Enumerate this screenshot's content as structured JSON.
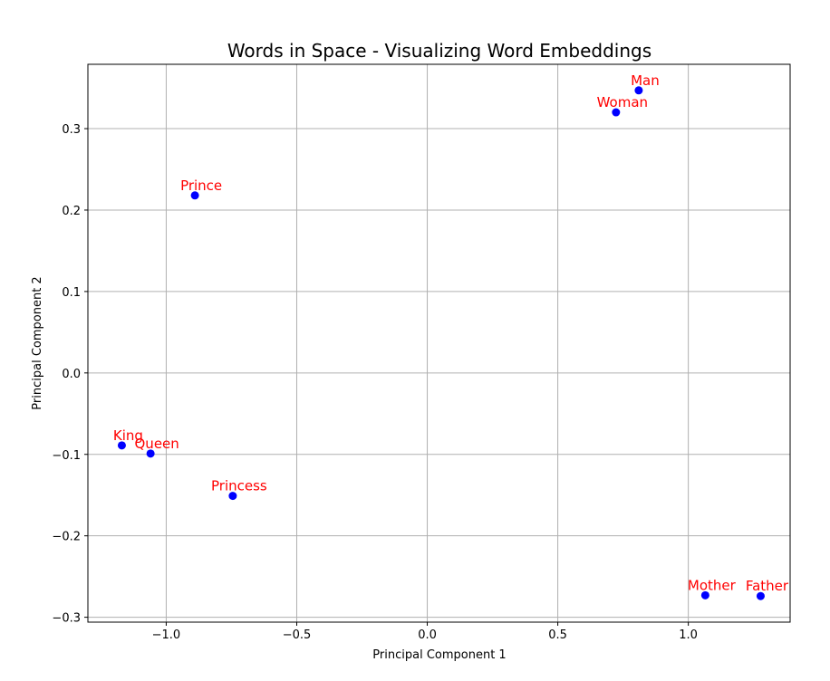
{
  "chart_data": {
    "type": "scatter",
    "title": "Words in Space - Visualizing Word Embeddings",
    "xlabel": "Principal Component 1",
    "ylabel": "Principal Component 2",
    "xlim": [
      -1.3,
      1.39
    ],
    "ylim": [
      -0.306,
      0.379
    ],
    "xticks": [
      -1.0,
      -0.5,
      0.0,
      0.5,
      1.0
    ],
    "xtick_labels": [
      "−1.0",
      "−0.5",
      "0.0",
      "0.5",
      "1.0"
    ],
    "yticks": [
      -0.3,
      -0.2,
      -0.1,
      0.0,
      0.1,
      0.2,
      0.3
    ],
    "ytick_labels": [
      "−0.3",
      "−0.2",
      "−0.1",
      "0.0",
      "0.1",
      "0.2",
      "0.3"
    ],
    "grid": true,
    "point_color": "#0000ff",
    "label_color": "#ff0000",
    "points": [
      {
        "label": "Man",
        "x": 0.81,
        "y": 0.347
      },
      {
        "label": "Woman",
        "x": 0.723,
        "y": 0.32
      },
      {
        "label": "Prince",
        "x": -0.89,
        "y": 0.218
      },
      {
        "label": "King",
        "x": -1.17,
        "y": -0.089
      },
      {
        "label": "Queen",
        "x": -1.06,
        "y": -0.099
      },
      {
        "label": "Princess",
        "x": -0.745,
        "y": -0.151
      },
      {
        "label": "Mother",
        "x": 1.065,
        "y": -0.273
      },
      {
        "label": "Father",
        "x": 1.277,
        "y": -0.274
      }
    ]
  }
}
